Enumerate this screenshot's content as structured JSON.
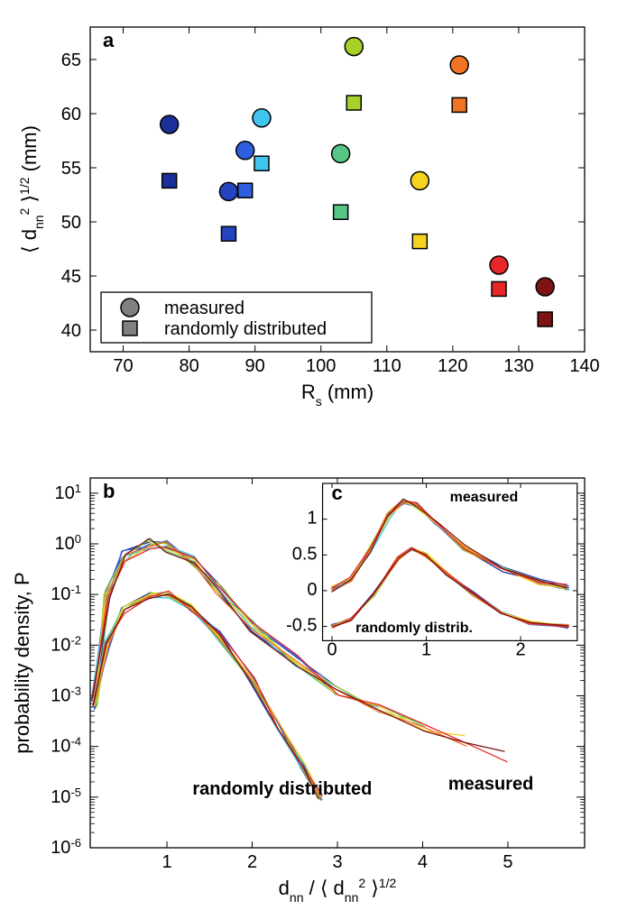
{
  "panel_a": {
    "type": "scatter",
    "label": "a",
    "xlabel": "R_s (mm)",
    "ylabel": "⟨ d_nn^2 ⟩^{1/2} (mm)",
    "xlim": [
      65,
      140
    ],
    "ylim": [
      38,
      68
    ],
    "xticks": [
      70,
      80,
      90,
      100,
      110,
      120,
      130,
      140
    ],
    "yticks": [
      40,
      45,
      50,
      55,
      60,
      65
    ],
    "background": "#ffffff",
    "axis_color": "#000000",
    "tick_fontsize": 20,
    "label_fontsize": 22,
    "marker_border": "#000000",
    "marker_border_width": 1.5,
    "circle_radius": 10,
    "square_size": 16,
    "series": [
      {
        "x": 77,
        "y_circle": 59.0,
        "y_square": 53.8,
        "color": "#1b2f9a"
      },
      {
        "x": 86,
        "y_circle": 52.8,
        "y_square": 48.9,
        "color": "#2643c0"
      },
      {
        "x": 88.5,
        "y_circle": 56.6,
        "y_square": 52.9,
        "color": "#2f5de0"
      },
      {
        "x": 91,
        "y_circle": 59.6,
        "y_square": 55.4,
        "color": "#3fc5ef"
      },
      {
        "x": 103,
        "y_circle": 56.3,
        "y_square": 50.9,
        "color": "#57c785"
      },
      {
        "x": 105,
        "y_circle": 66.2,
        "y_square": 61.0,
        "color": "#a7d129"
      },
      {
        "x": 115,
        "y_circle": 53.8,
        "y_square": 48.2,
        "color": "#f5d321"
      },
      {
        "x": 121,
        "y_circle": 64.5,
        "y_square": 60.8,
        "color": "#f07422"
      },
      {
        "x": 127,
        "y_circle": 46.0,
        "y_square": 43.8,
        "color": "#e8262a"
      },
      {
        "x": 134,
        "y_circle": 44.0,
        "y_square": 41.0,
        "color": "#7d1313"
      }
    ],
    "legend": {
      "border_color": "#000000",
      "circle_color": "#808080",
      "square_color": "#808080",
      "items": [
        {
          "marker": "circle",
          "label": "measured"
        },
        {
          "marker": "square",
          "label": "randomly distributed"
        }
      ]
    }
  },
  "panel_b": {
    "type": "line",
    "label": "b",
    "xlabel": "d_nn / ⟨ d_nn^2 ⟩^{1/2}",
    "ylabel": "probability density, P",
    "xlim": [
      0.1,
      5.9
    ],
    "ylim_log": [
      -6,
      1.3
    ],
    "xticks": [
      1,
      2,
      3,
      4,
      5
    ],
    "yticks_exp": [
      -6,
      -5,
      -4,
      -3,
      -2,
      -1,
      0,
      1
    ],
    "background": "#ffffff",
    "axis_color": "#000000",
    "tick_fontsize": 20,
    "label_fontsize": 22,
    "line_width": 1.3,
    "annotations": {
      "randomly_distributed": "randomly distributed",
      "measured": "measured"
    },
    "colors": [
      "#1b2f9a",
      "#2643c0",
      "#2f5de0",
      "#3fc5ef",
      "#57c785",
      "#a7d129",
      "#f5d321",
      "#f07422",
      "#e8262a",
      "#7d1313"
    ],
    "measured_curve_base": [
      [
        0.15,
        -3.1
      ],
      [
        0.3,
        -1.0
      ],
      [
        0.5,
        -0.25
      ],
      [
        0.8,
        -0.02
      ],
      [
        1.0,
        -0.05
      ],
      [
        1.3,
        -0.35
      ],
      [
        1.6,
        -0.9
      ],
      [
        2.0,
        -1.6
      ],
      [
        2.5,
        -2.3
      ],
      [
        3.0,
        -2.9
      ],
      [
        3.5,
        -3.3
      ],
      [
        4.0,
        -3.6
      ],
      [
        4.5,
        -3.9
      ],
      [
        5.0,
        -4.2
      ],
      [
        5.6,
        -4.5
      ]
    ],
    "random_curve_base": [
      [
        0.15,
        -3.2
      ],
      [
        0.3,
        -2.0
      ],
      [
        0.5,
        -1.3
      ],
      [
        0.8,
        -1.02
      ],
      [
        1.0,
        -1.0
      ],
      [
        1.3,
        -1.25
      ],
      [
        1.6,
        -1.8
      ],
      [
        2.0,
        -2.7
      ],
      [
        2.3,
        -3.6
      ],
      [
        2.6,
        -4.4
      ],
      [
        2.8,
        -5.0
      ]
    ]
  },
  "panel_c": {
    "type": "line",
    "label": "c",
    "xlim": [
      -0.1,
      2.6
    ],
    "ylim": [
      -0.7,
      1.5
    ],
    "xticks": [
      0,
      1,
      2
    ],
    "yticks": [
      -0.5,
      0,
      0.5,
      1
    ],
    "line_width": 1.3,
    "annotations": {
      "measured": "measured",
      "randomly_distributed": "randomly distrib."
    },
    "colors": [
      "#1b2f9a",
      "#2643c0",
      "#2f5de0",
      "#3fc5ef",
      "#57c785",
      "#a7d129",
      "#f5d321",
      "#f07422",
      "#e8262a",
      "#7d1313"
    ],
    "upper_base": [
      [
        0.0,
        0.02
      ],
      [
        0.2,
        0.15
      ],
      [
        0.4,
        0.55
      ],
      [
        0.6,
        1.05
      ],
      [
        0.75,
        1.25
      ],
      [
        0.9,
        1.2
      ],
      [
        1.1,
        0.95
      ],
      [
        1.4,
        0.6
      ],
      [
        1.8,
        0.3
      ],
      [
        2.2,
        0.12
      ],
      [
        2.5,
        0.05
      ]
    ],
    "lower_base": [
      [
        0.0,
        -0.5
      ],
      [
        0.2,
        -0.4
      ],
      [
        0.45,
        -0.05
      ],
      [
        0.7,
        0.45
      ],
      [
        0.85,
        0.58
      ],
      [
        1.0,
        0.5
      ],
      [
        1.2,
        0.25
      ],
      [
        1.5,
        -0.05
      ],
      [
        1.8,
        -0.3
      ],
      [
        2.1,
        -0.45
      ],
      [
        2.5,
        -0.5
      ]
    ]
  }
}
